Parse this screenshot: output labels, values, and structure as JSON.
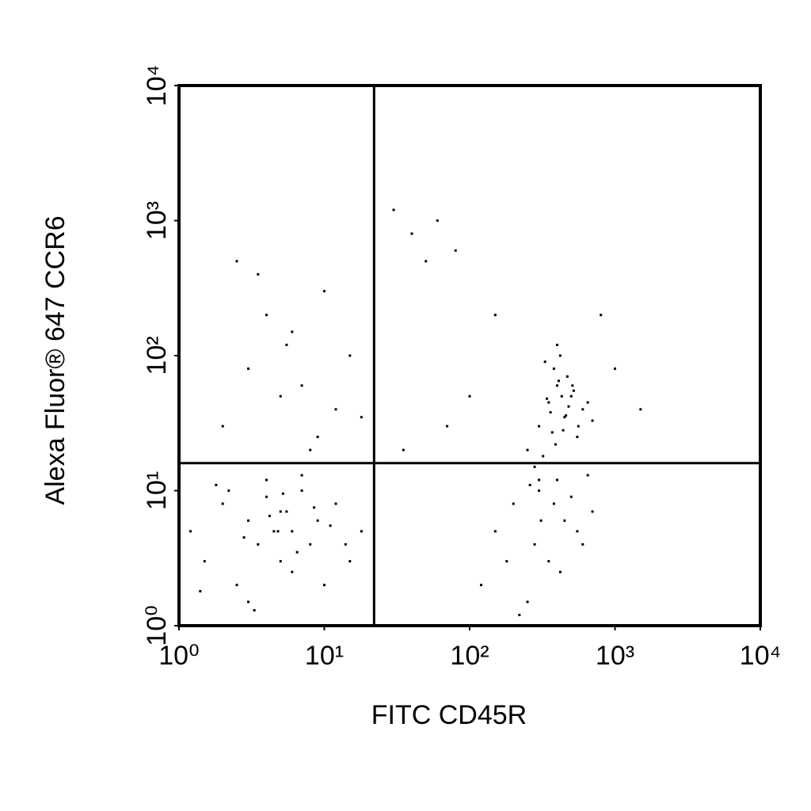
{
  "chart_data": {
    "type": "scatter",
    "x_label": "FITC CD45R",
    "y_label": "Alexa Fluor® 647 CCR6",
    "xscale": "log",
    "yscale": "log",
    "xlim": [
      1,
      10000
    ],
    "ylim": [
      1,
      10000
    ],
    "xticks": [
      {
        "value": 1,
        "label": "10⁰"
      },
      {
        "value": 10,
        "label": "10¹"
      },
      {
        "value": 100,
        "label": "10²"
      },
      {
        "value": 1000,
        "label": "10³"
      },
      {
        "value": 10000,
        "label": "10⁴"
      }
    ],
    "yticks": [
      {
        "value": 1,
        "label": "10⁰"
      },
      {
        "value": 10,
        "label": "10¹"
      },
      {
        "value": 100,
        "label": "10²"
      },
      {
        "value": 1000,
        "label": "10³"
      },
      {
        "value": 10000,
        "label": "10⁴"
      }
    ],
    "gate_x": 22,
    "gate_y": 16,
    "color": "#000000",
    "x": [
      1.2,
      1.5,
      2,
      2.5,
      3,
      3.5,
      4,
      4.5,
      5,
      5.5,
      6,
      7,
      8,
      9,
      10,
      12,
      15,
      18,
      3,
      4,
      5,
      6,
      7,
      2.2,
      2.8,
      3.3,
      4.2,
      5.2,
      6.5,
      8.5,
      1.4,
      1.8,
      11,
      14,
      4.8,
      250,
      300,
      350,
      400,
      450,
      500,
      550,
      600,
      380,
      420,
      320,
      470,
      520,
      280,
      360,
      440,
      650,
      700,
      390,
      410,
      330,
      480,
      560,
      300,
      430,
      370,
      460,
      510,
      340,
      400,
      120,
      150,
      200,
      250,
      300,
      350,
      400,
      450,
      500,
      600,
      700,
      180,
      220,
      260,
      310,
      380,
      420,
      550,
      650,
      280,
      2,
      3,
      4,
      5,
      6,
      8,
      10,
      12,
      15,
      3.5,
      7,
      9,
      2.5,
      5.5,
      18,
      30,
      40,
      50,
      60,
      80,
      35,
      70,
      100,
      150,
      800,
      1000,
      1500
    ],
    "values": [
      5,
      3,
      8,
      2,
      6,
      4,
      9,
      5,
      3,
      7,
      5,
      10,
      4,
      6,
      2,
      8,
      3,
      5,
      1.5,
      12,
      7,
      2.5,
      13,
      10,
      4.5,
      1.3,
      6.5,
      9.5,
      3.5,
      7.5,
      1.8,
      11,
      5.5,
      4,
      5,
      20,
      30,
      45,
      60,
      35,
      50,
      25,
      40,
      80,
      100,
      18,
      70,
      55,
      15,
      38,
      28,
      45,
      33,
      22,
      65,
      90,
      42,
      30,
      12,
      50,
      27,
      36,
      60,
      48,
      120,
      2,
      5,
      8,
      1.5,
      10,
      3,
      12,
      6,
      9,
      4,
      7,
      3,
      1.2,
      11,
      6,
      8,
      2.5,
      5,
      13,
      4,
      30,
      80,
      200,
      50,
      150,
      20,
      300,
      40,
      100,
      400,
      60,
      25,
      500,
      120,
      35,
      1200,
      800,
      500,
      1000,
      600,
      20,
      30,
      50,
      200,
      200,
      80,
      40
    ]
  }
}
